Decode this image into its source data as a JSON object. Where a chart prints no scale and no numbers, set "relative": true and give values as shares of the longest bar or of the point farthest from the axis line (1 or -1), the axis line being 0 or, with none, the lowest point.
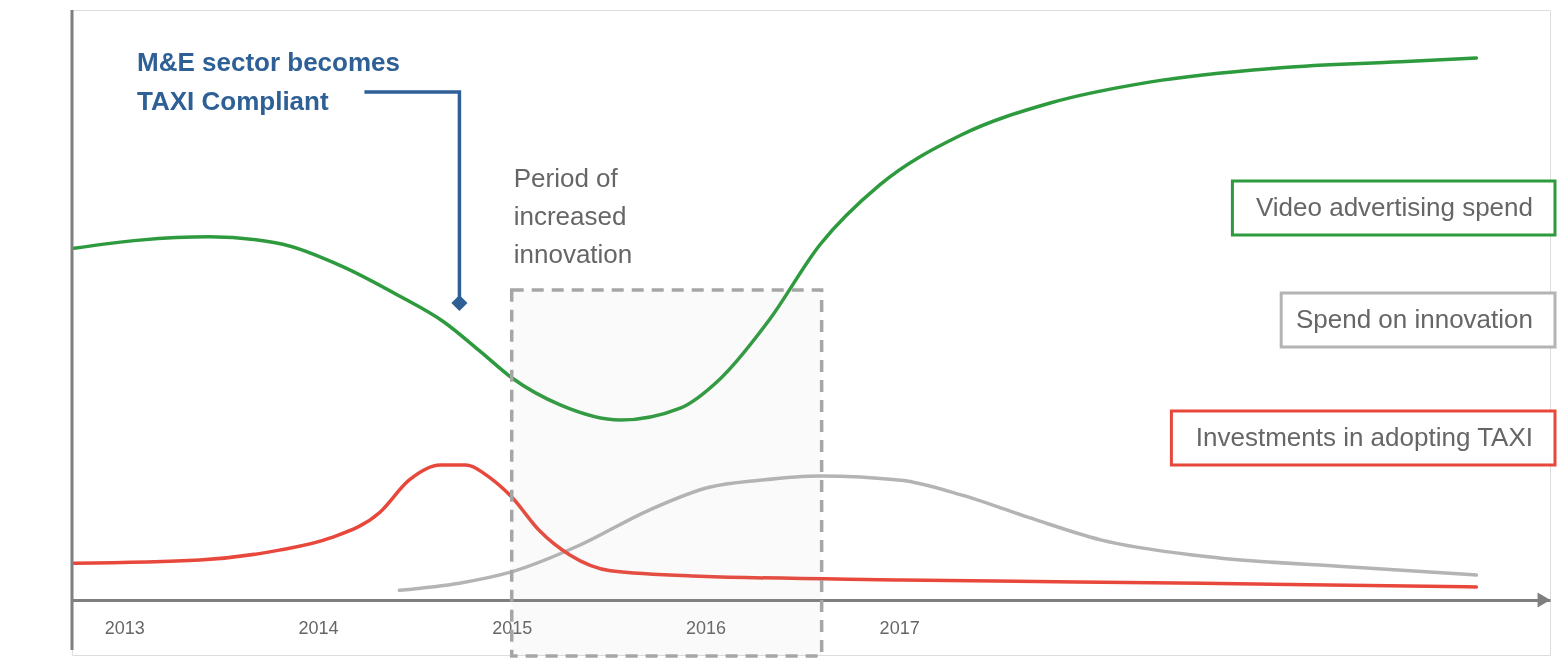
{
  "chart_data": {
    "type": "line",
    "relative": true,
    "legend": "right",
    "line_style": "solid",
    "marker": "none",
    "grid": false,
    "xlim": [
      2012.73,
      2020.36
    ],
    "xticks": [
      2013,
      2014,
      2015,
      2016,
      2017
    ],
    "series": [
      {
        "name": "Video advertising spend",
        "color": "#2e9a3e",
        "x": [
          2012.74,
          2013.08,
          2013.44,
          2013.78,
          2014.11,
          2014.42,
          2014.65,
          2014.83,
          2015.0,
          2015.25,
          2015.56,
          2015.87,
          2016.07,
          2016.33,
          2016.59,
          2016.9,
          2017.32,
          2017.78,
          2018.3,
          2018.97,
          2019.59,
          2019.98
        ],
        "values": [
          0.649,
          0.664,
          0.67,
          0.659,
          0.618,
          0.561,
          0.513,
          0.461,
          0.41,
          0.36,
          0.332,
          0.354,
          0.406,
          0.517,
          0.655,
          0.766,
          0.858,
          0.917,
          0.956,
          0.982,
          0.993,
          1
        ]
      },
      {
        "name": "Spend on innovation",
        "color": "#b4b4b4",
        "x": [
          2014.42,
          2014.73,
          2015.0,
          2015.35,
          2015.71,
          2016.02,
          2016.28,
          2016.59,
          2017.01,
          2017.32,
          2017.68,
          2018.04,
          2018.56,
          2019.33,
          2019.98
        ],
        "values": [
          0.018,
          0.031,
          0.052,
          0.101,
          0.166,
          0.208,
          0.221,
          0.229,
          0.221,
          0.194,
          0.151,
          0.111,
          0.081,
          0.061,
          0.046
        ]
      },
      {
        "name": "Investments in adopting TAXI",
        "color": "#e8483b",
        "x": [
          2012.74,
          2013.39,
          2013.8,
          2014.06,
          2014.32,
          2014.47,
          2014.63,
          2014.76,
          2014.89,
          2015.0,
          2015.14,
          2015.3,
          2015.51,
          2015.97,
          2017.01,
          2018.56,
          2019.98
        ],
        "values": [
          0.068,
          0.074,
          0.092,
          0.114,
          0.162,
          0.221,
          0.249,
          0.249,
          0.225,
          0.19,
          0.129,
          0.083,
          0.054,
          0.044,
          0.037,
          0.031,
          0.024
        ]
      }
    ],
    "bands": [
      {
        "axis": "x",
        "from": 2015,
        "to": 2016.6,
        "label": "Period of\nincreased\ninnovation",
        "color": "#a6a6a6"
      }
    ],
    "annotations": [
      {
        "text": "M&E sector becomes\nTAXI Compliant",
        "x": 2014.73,
        "y": 0.548
      }
    ]
  }
}
